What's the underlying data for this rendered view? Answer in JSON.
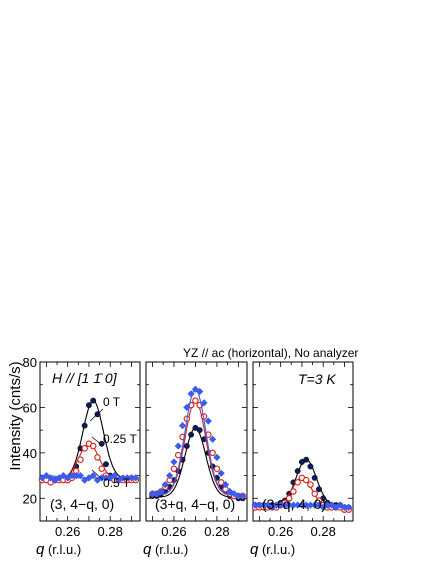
{
  "figure": {
    "header": "YZ // ac (horizontal),  No analyzer",
    "ylabel": "Intensity  (cnts/s)",
    "xlabel_var": "q",
    "xlabel_unit": "  (r.l.u.)"
  },
  "colors": {
    "zero_t": "#0a1c5c",
    "quarter_t": "#d81e16",
    "half_t": "#3a5cf0"
  },
  "chart_data": [
    {
      "type": "scatter",
      "panel": "left",
      "title": "",
      "label_lines": [
        "H // [1 1̄ 0]"
      ],
      "annotations": [
        "0 T",
        "0.25 T",
        "0.5 T"
      ],
      "corner_label": "(3, 4−q, 0)",
      "xlim": [
        0.247,
        0.294
      ],
      "ylim": [
        10,
        80
      ],
      "xticks": [
        "0.26",
        "0.28"
      ],
      "yticks": [
        "20",
        "40",
        "60",
        "80"
      ],
      "series": [
        {
          "name": "0 T",
          "marker": "filled-circle",
          "x": [
            0.248,
            0.25,
            0.252,
            0.254,
            0.256,
            0.258,
            0.26,
            0.262,
            0.264,
            0.266,
            0.268,
            0.27,
            0.272,
            0.274,
            0.276,
            0.278,
            0.28,
            0.282,
            0.284,
            0.286,
            0.288,
            0.29,
            0.292
          ],
          "y": [
            29,
            28,
            28,
            28,
            28,
            28,
            28,
            30,
            34,
            42,
            52,
            61,
            63,
            57,
            44,
            35,
            30,
            28,
            28,
            28,
            28,
            29,
            28
          ]
        },
        {
          "name": "0.25 T",
          "marker": "open-circle",
          "x": [
            0.248,
            0.25,
            0.252,
            0.254,
            0.256,
            0.258,
            0.26,
            0.262,
            0.264,
            0.266,
            0.268,
            0.27,
            0.272,
            0.274,
            0.276,
            0.278,
            0.28,
            0.282,
            0.284,
            0.286,
            0.288,
            0.29,
            0.292
          ],
          "y": [
            28,
            28,
            27,
            28,
            28,
            28,
            28,
            29,
            32,
            37,
            42,
            44,
            43,
            38,
            33,
            30,
            29,
            28,
            28,
            28,
            28,
            28,
            28
          ]
        },
        {
          "name": "0.5 T",
          "marker": "diamond",
          "x": [
            0.248,
            0.25,
            0.252,
            0.254,
            0.256,
            0.258,
            0.26,
            0.262,
            0.264,
            0.266,
            0.268,
            0.27,
            0.272,
            0.274,
            0.276,
            0.278,
            0.28,
            0.282,
            0.284,
            0.286,
            0.288,
            0.29,
            0.292
          ],
          "y": [
            29,
            30,
            29,
            28,
            29,
            30,
            29,
            30,
            30,
            30,
            28,
            29,
            30,
            28,
            29,
            29,
            29,
            30,
            28,
            29,
            29,
            29,
            29
          ]
        }
      ]
    },
    {
      "type": "scatter",
      "panel": "middle",
      "corner_label": "(3+q, 4−q, 0)",
      "xlim": [
        0.247,
        0.294
      ],
      "ylim": [
        10,
        80
      ],
      "xticks": [
        "0.26",
        "0.28"
      ],
      "yticks": [],
      "series": [
        {
          "name": "0 T",
          "marker": "filled-circle",
          "x": [
            0.25,
            0.252,
            0.254,
            0.256,
            0.258,
            0.26,
            0.262,
            0.264,
            0.266,
            0.268,
            0.27,
            0.272,
            0.274,
            0.276,
            0.278,
            0.28,
            0.282,
            0.284,
            0.286,
            0.288,
            0.29,
            0.292
          ],
          "y": [
            21,
            21,
            22,
            23,
            25,
            28,
            32,
            37,
            43,
            48,
            51,
            50,
            46,
            40,
            34,
            29,
            25,
            23,
            21,
            21,
            20,
            20
          ]
        },
        {
          "name": "0.25 T",
          "marker": "open-circle",
          "x": [
            0.25,
            0.252,
            0.254,
            0.256,
            0.258,
            0.26,
            0.262,
            0.264,
            0.266,
            0.268,
            0.27,
            0.272,
            0.274,
            0.276,
            0.278,
            0.28,
            0.282,
            0.284,
            0.286,
            0.288,
            0.29,
            0.292
          ],
          "y": [
            22,
            22,
            23,
            25,
            28,
            33,
            39,
            47,
            55,
            61,
            63,
            61,
            56,
            48,
            40,
            33,
            27,
            24,
            22,
            21,
            21,
            21
          ]
        },
        {
          "name": "0.5 T",
          "marker": "diamond",
          "x": [
            0.25,
            0.252,
            0.254,
            0.256,
            0.258,
            0.26,
            0.262,
            0.264,
            0.266,
            0.268,
            0.27,
            0.272,
            0.274,
            0.276,
            0.278,
            0.28,
            0.282,
            0.284,
            0.286,
            0.288,
            0.29,
            0.292
          ],
          "y": [
            22,
            22,
            23,
            26,
            30,
            36,
            43,
            52,
            60,
            66,
            68,
            67,
            62,
            54,
            46,
            38,
            31,
            26,
            23,
            22,
            21,
            21
          ]
        }
      ]
    },
    {
      "type": "scatter",
      "panel": "right",
      "label_lines": [
        "T=3 K"
      ],
      "corner_label": "(3+q, 4, 0)",
      "xlim": [
        0.247,
        0.294
      ],
      "ylim": [
        10,
        80
      ],
      "xticks": [
        "0.26",
        "0.28"
      ],
      "yticks": [],
      "series": [
        {
          "name": "0 T",
          "marker": "filled-circle",
          "x": [
            0.248,
            0.25,
            0.252,
            0.254,
            0.256,
            0.258,
            0.26,
            0.262,
            0.264,
            0.266,
            0.268,
            0.27,
            0.272,
            0.274,
            0.276,
            0.278,
            0.28,
            0.282,
            0.284,
            0.286,
            0.288,
            0.29,
            0.292
          ],
          "y": [
            17,
            17,
            17,
            17,
            17,
            17,
            18,
            19,
            22,
            27,
            32,
            36,
            37,
            34,
            29,
            24,
            20,
            18,
            17,
            17,
            17,
            16,
            16
          ]
        },
        {
          "name": "0.25 T",
          "marker": "open-circle",
          "x": [
            0.248,
            0.25,
            0.252,
            0.254,
            0.256,
            0.258,
            0.26,
            0.262,
            0.264,
            0.266,
            0.268,
            0.27,
            0.272,
            0.274,
            0.276,
            0.278,
            0.28,
            0.282,
            0.284,
            0.286,
            0.288,
            0.29,
            0.292
          ],
          "y": [
            16,
            16,
            16,
            16,
            16,
            16,
            17,
            18,
            20,
            23,
            27,
            29,
            28,
            26,
            22,
            19,
            17,
            16,
            16,
            16,
            16,
            15,
            15
          ]
        },
        {
          "name": "0.5 T",
          "marker": "diamond",
          "x": [
            0.248,
            0.25,
            0.252,
            0.254,
            0.256,
            0.258,
            0.26,
            0.262,
            0.264,
            0.266,
            0.268,
            0.27,
            0.272,
            0.274,
            0.276,
            0.278,
            0.28,
            0.282,
            0.284,
            0.286,
            0.288,
            0.29,
            0.292
          ],
          "y": [
            17,
            17,
            17,
            17,
            16,
            17,
            17,
            17,
            17,
            17,
            17,
            17,
            17,
            17,
            17,
            17,
            16,
            17,
            17,
            16,
            17,
            16,
            16
          ]
        }
      ]
    }
  ]
}
